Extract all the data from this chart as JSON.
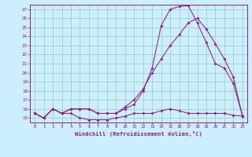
{
  "xlabel": "Windchill (Refroidissement éolien,°C)",
  "bg_color": "#cceeff",
  "grid_color": "#99ccbb",
  "line_color": "#882288",
  "xlim": [
    -0.5,
    23.5
  ],
  "ylim": [
    14.5,
    27.5
  ],
  "xticks": [
    0,
    1,
    2,
    3,
    4,
    5,
    6,
    7,
    8,
    9,
    10,
    11,
    12,
    13,
    14,
    15,
    16,
    17,
    18,
    19,
    20,
    21,
    22,
    23
  ],
  "yticks": [
    15,
    16,
    17,
    18,
    19,
    20,
    21,
    22,
    23,
    24,
    25,
    26,
    27
  ],
  "series1_x": [
    0,
    1,
    2,
    3,
    4,
    5,
    6,
    7,
    8,
    9,
    10,
    11,
    12,
    13,
    14,
    15,
    16,
    17,
    18,
    19,
    20,
    21,
    22,
    23
  ],
  "series1_y": [
    15.5,
    15.0,
    16.0,
    15.5,
    15.5,
    15.0,
    14.8,
    14.8,
    14.8,
    15.0,
    15.2,
    15.5,
    15.5,
    15.5,
    15.8,
    16.0,
    15.8,
    15.5,
    15.5,
    15.5,
    15.5,
    15.5,
    15.3,
    15.2
  ],
  "series2_x": [
    0,
    1,
    2,
    3,
    4,
    5,
    6,
    7,
    8,
    9,
    10,
    11,
    12,
    13,
    14,
    15,
    16,
    17,
    18,
    19,
    20,
    21,
    22,
    23
  ],
  "series2_y": [
    15.5,
    15.0,
    16.0,
    15.5,
    16.0,
    16.0,
    16.0,
    15.5,
    15.5,
    15.5,
    16.0,
    16.5,
    18.0,
    20.5,
    25.2,
    27.0,
    27.3,
    27.4,
    25.5,
    23.3,
    21.0,
    20.5,
    18.8,
    15.2
  ],
  "series3_x": [
    0,
    1,
    2,
    3,
    4,
    5,
    6,
    7,
    8,
    9,
    10,
    11,
    12,
    13,
    14,
    15,
    16,
    17,
    18,
    19,
    20,
    21,
    22,
    23
  ],
  "series3_y": [
    15.5,
    15.0,
    16.0,
    15.5,
    16.0,
    16.0,
    16.0,
    15.5,
    15.5,
    15.5,
    16.2,
    17.0,
    18.2,
    20.0,
    21.5,
    23.0,
    24.2,
    25.5,
    26.0,
    24.8,
    23.2,
    21.5,
    19.5,
    15.2
  ]
}
